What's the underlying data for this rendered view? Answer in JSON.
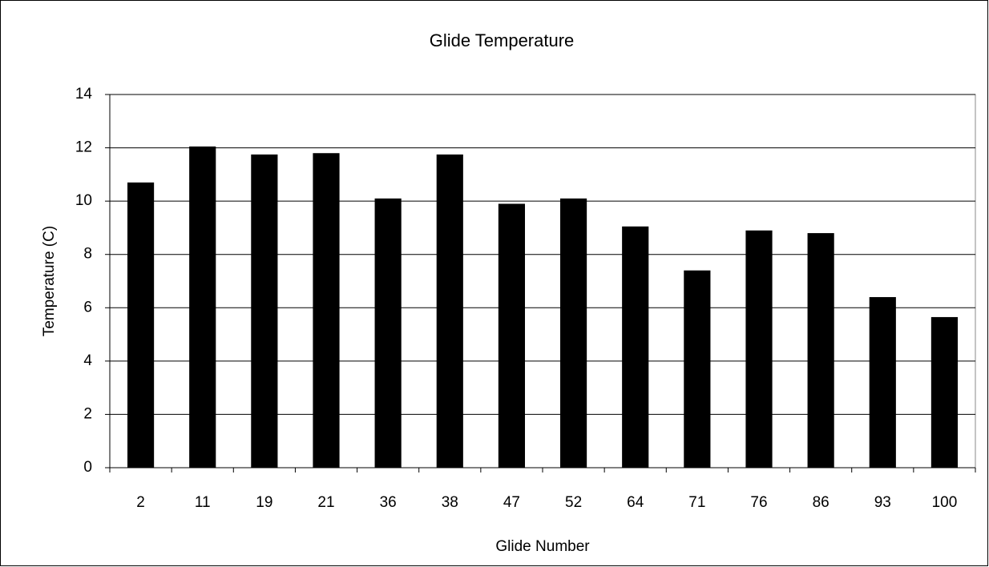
{
  "chart_data": {
    "type": "bar",
    "title": "Glide Temperature",
    "x_label": "Glide Number",
    "y_label": "Temperature (C)",
    "categories": [
      "2",
      "11",
      "19",
      "21",
      "36",
      "38",
      "47",
      "52",
      "64",
      "71",
      "76",
      "86",
      "93",
      "100"
    ],
    "values": [
      10.7,
      12.05,
      11.75,
      11.8,
      10.1,
      11.75,
      9.9,
      10.1,
      9.05,
      7.4,
      8.9,
      8.8,
      6.4,
      5.65
    ],
    "color": "#000000",
    "ylim": [
      0,
      14
    ],
    "yticks": [
      0,
      2,
      4,
      6,
      8,
      10,
      12,
      14
    ],
    "grid": true
  }
}
